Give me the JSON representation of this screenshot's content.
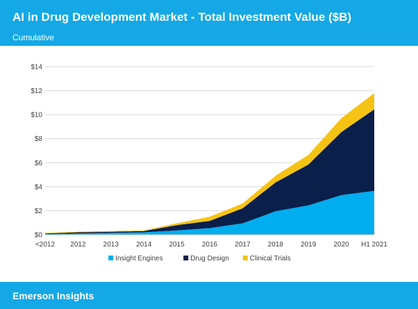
{
  "header": {
    "title": "AI in Drug Development Market - Total Investment Value ($B)",
    "subtitle": "Cumulative"
  },
  "footer": {
    "brand": "Emerson Insights"
  },
  "colors": {
    "header_bg": "#14a8e6",
    "insight_engines": "#00aeef",
    "drug_design": "#0b1f4b",
    "clinical_trials": "#f5c313"
  },
  "chart_data": {
    "type": "area",
    "stacked": true,
    "categories": [
      "<2012",
      "2012",
      "2013",
      "2014",
      "2015",
      "2016",
      "2017",
      "2018",
      "2019",
      "2020",
      "H1 2021"
    ],
    "ylim": [
      0,
      14
    ],
    "yticks": [
      0,
      2,
      4,
      6,
      8,
      10,
      12,
      14
    ],
    "ytick_labels": [
      "$0",
      "$2",
      "$4",
      "$6",
      "$8",
      "$10",
      "$12",
      "$14"
    ],
    "grid": true,
    "legend_position": "bottom",
    "series": [
      {
        "name": "Insight Engines",
        "color": "#00aeef",
        "values": [
          0.05,
          0.1,
          0.15,
          0.2,
          0.35,
          0.55,
          0.95,
          1.95,
          2.45,
          3.3,
          3.65
        ]
      },
      {
        "name": "Drug Design",
        "color": "#0b1f4b",
        "values": [
          0.05,
          0.1,
          0.1,
          0.1,
          0.45,
          0.6,
          1.25,
          2.4,
          3.4,
          5.25,
          6.8
        ]
      },
      {
        "name": "Clinical Trials",
        "color": "#f5c313",
        "values": [
          0.05,
          0.05,
          0.05,
          0.05,
          0.15,
          0.35,
          0.4,
          0.55,
          0.8,
          1.15,
          1.35
        ]
      }
    ]
  }
}
